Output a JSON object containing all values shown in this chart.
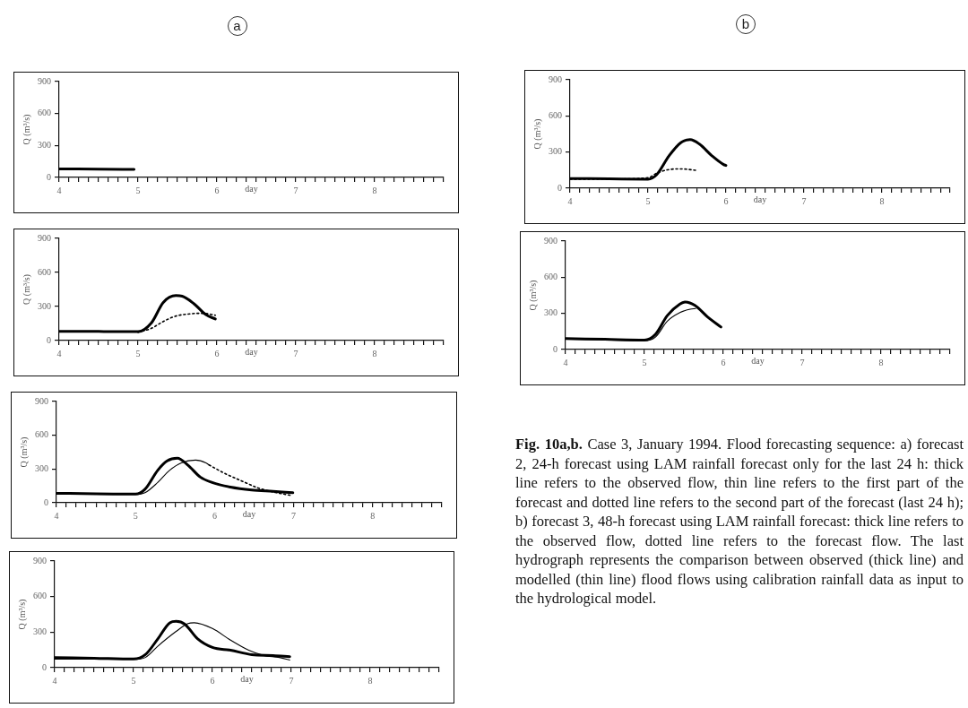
{
  "chart_data": [
    {
      "type": "line",
      "title": "a",
      "xlabel": "day",
      "ylabel": "Q (m³/s)",
      "xlim": [
        4,
        8.875
      ],
      "ylim": [
        0,
        900
      ],
      "yticks": [
        0,
        300,
        600,
        900
      ],
      "grid": false,
      "legend": false,
      "marker": "none",
      "xticks": [
        4,
        {
          "value": 4.125,
          "label": null
        },
        {
          "value": 4.25,
          "label": null
        },
        {
          "value": 4.375,
          "label": null
        },
        {
          "value": 4.5,
          "label": null
        },
        {
          "value": 4.625,
          "label": null
        },
        {
          "value": 4.75,
          "label": null
        },
        {
          "value": 4.875,
          "label": null
        },
        5,
        {
          "value": 5.125,
          "label": null
        },
        {
          "value": 5.25,
          "label": null
        },
        {
          "value": 5.375,
          "label": null
        },
        {
          "value": 5.5,
          "label": null
        },
        {
          "value": 5.625,
          "label": null
        },
        {
          "value": 5.75,
          "label": null
        },
        {
          "value": 5.875,
          "label": null
        },
        6,
        {
          "value": 6.125,
          "label": null
        },
        {
          "value": 6.25,
          "label": null
        },
        {
          "value": 6.375,
          "label": null
        },
        {
          "value": 6.5,
          "label": null
        },
        {
          "value": 6.625,
          "label": null
        },
        {
          "value": 6.75,
          "label": null
        },
        {
          "value": 6.875,
          "label": null
        },
        7,
        {
          "value": 7.125,
          "label": null
        },
        {
          "value": 7.25,
          "label": null
        },
        {
          "value": 7.375,
          "label": null
        },
        {
          "value": 7.5,
          "label": null
        },
        {
          "value": 7.625,
          "label": null
        },
        {
          "value": 7.75,
          "label": null
        },
        {
          "value": 7.875,
          "label": null
        },
        8,
        {
          "value": 8.125,
          "label": null
        },
        {
          "value": 8.25,
          "label": null
        },
        {
          "value": 8.375,
          "label": null
        },
        {
          "value": 8.5,
          "label": null
        },
        {
          "value": 8.625,
          "label": null
        },
        {
          "value": 8.75,
          "label": null
        },
        {
          "value": 8.875,
          "label": null
        }
      ],
      "series": [
        {
          "color": "#000000",
          "line_style": "solid",
          "x": [
            4,
            4.5,
            4.95
          ],
          "values": [
            80,
            78,
            75
          ]
        }
      ]
    },
    {
      "type": "line",
      "xlabel": "day",
      "ylabel": "Q (m³/s)",
      "xlim": [
        4,
        8.875
      ],
      "ylim": [
        0,
        900
      ],
      "yticks": [
        0,
        300,
        600,
        900
      ],
      "grid": false,
      "legend": false,
      "marker": "none",
      "xticks": [
        4,
        {
          "value": 4.125,
          "label": null
        },
        {
          "value": 4.25,
          "label": null
        },
        {
          "value": 4.375,
          "label": null
        },
        {
          "value": 4.5,
          "label": null
        },
        {
          "value": 4.625,
          "label": null
        },
        {
          "value": 4.75,
          "label": null
        },
        {
          "value": 4.875,
          "label": null
        },
        5,
        {
          "value": 5.125,
          "label": null
        },
        {
          "value": 5.25,
          "label": null
        },
        {
          "value": 5.375,
          "label": null
        },
        {
          "value": 5.5,
          "label": null
        },
        {
          "value": 5.625,
          "label": null
        },
        {
          "value": 5.75,
          "label": null
        },
        {
          "value": 5.875,
          "label": null
        },
        6,
        {
          "value": 6.125,
          "label": null
        },
        {
          "value": 6.25,
          "label": null
        },
        {
          "value": 6.375,
          "label": null
        },
        {
          "value": 6.5,
          "label": null
        },
        {
          "value": 6.625,
          "label": null
        },
        {
          "value": 6.75,
          "label": null
        },
        {
          "value": 6.875,
          "label": null
        },
        7,
        {
          "value": 7.125,
          "label": null
        },
        {
          "value": 7.25,
          "label": null
        },
        {
          "value": 7.375,
          "label": null
        },
        {
          "value": 7.5,
          "label": null
        },
        {
          "value": 7.625,
          "label": null
        },
        {
          "value": 7.75,
          "label": null
        },
        {
          "value": 7.875,
          "label": null
        },
        8,
        {
          "value": 8.125,
          "label": null
        },
        {
          "value": 8.25,
          "label": null
        },
        {
          "value": 8.375,
          "label": null
        },
        {
          "value": 8.5,
          "label": null
        },
        {
          "value": 8.625,
          "label": null
        },
        {
          "value": 8.75,
          "label": null
        },
        {
          "value": 8.875,
          "label": null
        }
      ],
      "series": [
        {
          "color": "#000000",
          "line_style": "solid",
          "x": [
            4,
            4.5,
            5,
            5.17,
            5.32,
            5.48,
            5.56,
            5.71,
            5.86,
            5.98
          ],
          "values": [
            80,
            80,
            78,
            156,
            336,
            396,
            391,
            324,
            228,
            190
          ]
        },
        {
          "color": "#000000",
          "line_style": "dotted",
          "x": [
            5,
            5.17,
            5.32,
            5.48,
            5.63,
            5.79,
            5.86,
            5.98
          ],
          "values": [
            72,
            108,
            168,
            216,
            233,
            240,
            238,
            223
          ]
        }
      ]
    },
    {
      "type": "line",
      "xlabel": "day",
      "ylabel": "Q (m³/s)",
      "xlim": [
        4,
        8.875
      ],
      "ylim": [
        0,
        900
      ],
      "yticks": [
        0,
        300,
        600,
        900
      ],
      "grid": false,
      "legend": false,
      "marker": "none",
      "xticks": [
        4,
        {
          "value": 4.125,
          "label": null
        },
        {
          "value": 4.25,
          "label": null
        },
        {
          "value": 4.375,
          "label": null
        },
        {
          "value": 4.5,
          "label": null
        },
        {
          "value": 4.625,
          "label": null
        },
        {
          "value": 4.75,
          "label": null
        },
        {
          "value": 4.875,
          "label": null
        },
        5,
        {
          "value": 5.125,
          "label": null
        },
        {
          "value": 5.25,
          "label": null
        },
        {
          "value": 5.375,
          "label": null
        },
        {
          "value": 5.5,
          "label": null
        },
        {
          "value": 5.625,
          "label": null
        },
        {
          "value": 5.75,
          "label": null
        },
        {
          "value": 5.875,
          "label": null
        },
        6,
        {
          "value": 6.125,
          "label": null
        },
        {
          "value": 6.25,
          "label": null
        },
        {
          "value": 6.375,
          "label": null
        },
        {
          "value": 6.5,
          "label": null
        },
        {
          "value": 6.625,
          "label": null
        },
        {
          "value": 6.75,
          "label": null
        },
        {
          "value": 6.875,
          "label": null
        },
        7,
        {
          "value": 7.125,
          "label": null
        },
        {
          "value": 7.25,
          "label": null
        },
        {
          "value": 7.375,
          "label": null
        },
        {
          "value": 7.5,
          "label": null
        },
        {
          "value": 7.625,
          "label": null
        },
        {
          "value": 7.75,
          "label": null
        },
        {
          "value": 7.875,
          "label": null
        },
        8,
        {
          "value": 8.125,
          "label": null
        },
        {
          "value": 8.25,
          "label": null
        },
        {
          "value": 8.375,
          "label": null
        },
        {
          "value": 8.5,
          "label": null
        },
        {
          "value": 8.625,
          "label": null
        },
        {
          "value": 8.75,
          "label": null
        },
        {
          "value": 8.875,
          "label": null
        }
      ],
      "series": [
        {
          "color": "#000000",
          "line_style": "solid",
          "x": [
            4,
            4.5,
            5,
            5.12,
            5.28,
            5.4,
            5.53,
            5.66,
            5.82,
            5.97,
            6.2,
            6.47,
            6.74,
            6.99
          ],
          "values": [
            84,
            80,
            77,
            120,
            288,
            372,
            396,
            336,
            228,
            180,
            139,
            113,
            101,
            89
          ]
        },
        {
          "color": "#000000",
          "line_style": "solid",
          "x": [
            4,
            4.5,
            5,
            5.12,
            5.28,
            5.43,
            5.58,
            5.76,
            5.89,
            5.93
          ],
          "values": [
            80,
            76,
            74,
            89,
            180,
            288,
            355,
            379,
            355,
            336
          ]
        },
        {
          "color": "#000000",
          "line_style": "dotted",
          "x": [
            5.93,
            6.12,
            6.35,
            6.55,
            6.74,
            6.97
          ],
          "values": [
            336,
            264,
            192,
            132,
            96,
            65
          ]
        }
      ]
    },
    {
      "type": "line",
      "xlabel": "day",
      "ylabel": "Q (m³/s)",
      "xlim": [
        4,
        8.875
      ],
      "ylim": [
        0,
        900
      ],
      "yticks": [
        0,
        300,
        600,
        900
      ],
      "grid": false,
      "legend": false,
      "marker": "none",
      "xticks": [
        4,
        {
          "value": 4.125,
          "label": null
        },
        {
          "value": 4.25,
          "label": null
        },
        {
          "value": 4.375,
          "label": null
        },
        {
          "value": 4.5,
          "label": null
        },
        {
          "value": 4.625,
          "label": null
        },
        {
          "value": 4.75,
          "label": null
        },
        {
          "value": 4.875,
          "label": null
        },
        5,
        {
          "value": 5.125,
          "label": null
        },
        {
          "value": 5.25,
          "label": null
        },
        {
          "value": 5.375,
          "label": null
        },
        {
          "value": 5.5,
          "label": null
        },
        {
          "value": 5.625,
          "label": null
        },
        {
          "value": 5.75,
          "label": null
        },
        {
          "value": 5.875,
          "label": null
        },
        6,
        {
          "value": 6.125,
          "label": null
        },
        {
          "value": 6.25,
          "label": null
        },
        {
          "value": 6.375,
          "label": null
        },
        {
          "value": 6.5,
          "label": null
        },
        {
          "value": 6.625,
          "label": null
        },
        {
          "value": 6.75,
          "label": null
        },
        {
          "value": 6.875,
          "label": null
        },
        7,
        {
          "value": 7.125,
          "label": null
        },
        {
          "value": 7.25,
          "label": null
        },
        {
          "value": 7.375,
          "label": null
        },
        {
          "value": 7.5,
          "label": null
        },
        {
          "value": 7.625,
          "label": null
        },
        {
          "value": 7.75,
          "label": null
        },
        {
          "value": 7.875,
          "label": null
        },
        8,
        {
          "value": 8.125,
          "label": null
        },
        {
          "value": 8.25,
          "label": null
        },
        {
          "value": 8.375,
          "label": null
        },
        {
          "value": 8.5,
          "label": null
        },
        {
          "value": 8.625,
          "label": null
        },
        {
          "value": 8.75,
          "label": null
        },
        {
          "value": 8.875,
          "label": null
        }
      ],
      "series": [
        {
          "color": "#000000",
          "line_style": "solid",
          "x": [
            4,
            4.5,
            5,
            5.15,
            5.31,
            5.46,
            5.54,
            5.65,
            5.81,
            6,
            6.23,
            6.5,
            6.77,
            6.98
          ],
          "values": [
            86,
            80,
            73,
            110,
            245,
            379,
            391,
            367,
            245,
            171,
            147,
            110,
            103,
            93
          ]
        },
        {
          "color": "#000000",
          "line_style": "solid",
          "x": [
            4,
            4.5,
            5,
            5.15,
            5.31,
            5.54,
            5.69,
            5.77,
            6,
            6.23,
            6.46,
            6.65,
            6.85,
            6.98
          ],
          "values": [
            73,
            72,
            70,
            86,
            183,
            306,
            372,
            379,
            330,
            232,
            147,
            103,
            86,
            64
          ]
        }
      ]
    },
    {
      "type": "line",
      "title": "b",
      "xlabel": "day",
      "ylabel": "Q (m³/s)",
      "xlim": [
        4,
        8.875
      ],
      "ylim": [
        0,
        900
      ],
      "yticks": [
        0,
        300,
        600,
        900
      ],
      "grid": false,
      "legend": false,
      "marker": "none",
      "xticks": [
        4,
        {
          "value": 4.125,
          "label": null
        },
        {
          "value": 4.25,
          "label": null
        },
        {
          "value": 4.375,
          "label": null
        },
        {
          "value": 4.5,
          "label": null
        },
        {
          "value": 4.625,
          "label": null
        },
        {
          "value": 4.75,
          "label": null
        },
        {
          "value": 4.875,
          "label": null
        },
        5,
        {
          "value": 5.125,
          "label": null
        },
        {
          "value": 5.25,
          "label": null
        },
        {
          "value": 5.375,
          "label": null
        },
        {
          "value": 5.5,
          "label": null
        },
        {
          "value": 5.625,
          "label": null
        },
        {
          "value": 5.75,
          "label": null
        },
        {
          "value": 5.875,
          "label": null
        },
        6,
        {
          "value": 6.125,
          "label": null
        },
        {
          "value": 6.25,
          "label": null
        },
        {
          "value": 6.375,
          "label": null
        },
        {
          "value": 6.5,
          "label": null
        },
        {
          "value": 6.625,
          "label": null
        },
        {
          "value": 6.75,
          "label": null
        },
        {
          "value": 6.875,
          "label": null
        },
        7,
        {
          "value": 7.125,
          "label": null
        },
        {
          "value": 7.25,
          "label": null
        },
        {
          "value": 7.375,
          "label": null
        },
        {
          "value": 7.5,
          "label": null
        },
        {
          "value": 7.625,
          "label": null
        },
        {
          "value": 7.75,
          "label": null
        },
        {
          "value": 7.875,
          "label": null
        },
        8,
        {
          "value": 8.125,
          "label": null
        },
        {
          "value": 8.25,
          "label": null
        },
        {
          "value": 8.375,
          "label": null
        },
        {
          "value": 8.5,
          "label": null
        },
        {
          "value": 8.625,
          "label": null
        },
        {
          "value": 8.75,
          "label": null
        },
        {
          "value": 8.875,
          "label": null
        }
      ],
      "series": [
        {
          "color": "#000000",
          "line_style": "solid",
          "x": [
            4,
            4.5,
            5,
            5.11,
            5.27,
            5.42,
            5.54,
            5.66,
            5.82,
            5.97,
            6
          ],
          "values": [
            80,
            78,
            75,
            112,
            269,
            378,
            403,
            366,
            269,
            196,
            189
          ]
        },
        {
          "color": "#000000",
          "line_style": "dotted",
          "x": [
            4,
            4.5,
            5,
            5.11,
            5.27,
            5.42,
            5.63
          ],
          "values": [
            75,
            76,
            87,
            124,
            155,
            160,
            148
          ]
        }
      ]
    },
    {
      "type": "line",
      "xlabel": "day",
      "ylabel": "Q (m³/s)",
      "xlim": [
        4,
        8.875
      ],
      "ylim": [
        0,
        900
      ],
      "yticks": [
        0,
        300,
        600,
        900
      ],
      "grid": false,
      "legend": false,
      "marker": "none",
      "xticks": [
        4,
        {
          "value": 4.125,
          "label": null
        },
        {
          "value": 4.25,
          "label": null
        },
        {
          "value": 4.375,
          "label": null
        },
        {
          "value": 4.5,
          "label": null
        },
        {
          "value": 4.625,
          "label": null
        },
        {
          "value": 4.75,
          "label": null
        },
        {
          "value": 4.875,
          "label": null
        },
        5,
        {
          "value": 5.125,
          "label": null
        },
        {
          "value": 5.25,
          "label": null
        },
        {
          "value": 5.375,
          "label": null
        },
        {
          "value": 5.5,
          "label": null
        },
        {
          "value": 5.625,
          "label": null
        },
        {
          "value": 5.75,
          "label": null
        },
        {
          "value": 5.875,
          "label": null
        },
        6,
        {
          "value": 6.125,
          "label": null
        },
        {
          "value": 6.25,
          "label": null
        },
        {
          "value": 6.375,
          "label": null
        },
        {
          "value": 6.5,
          "label": null
        },
        {
          "value": 6.625,
          "label": null
        },
        {
          "value": 6.75,
          "label": null
        },
        {
          "value": 6.875,
          "label": null
        },
        7,
        {
          "value": 7.125,
          "label": null
        },
        {
          "value": 7.25,
          "label": null
        },
        {
          "value": 7.375,
          "label": null
        },
        {
          "value": 7.5,
          "label": null
        },
        {
          "value": 7.625,
          "label": null
        },
        {
          "value": 7.75,
          "label": null
        },
        {
          "value": 7.875,
          "label": null
        },
        8,
        {
          "value": 8.125,
          "label": null
        },
        {
          "value": 8.25,
          "label": null
        },
        {
          "value": 8.375,
          "label": null
        },
        {
          "value": 8.5,
          "label": null
        },
        {
          "value": 8.625,
          "label": null
        },
        {
          "value": 8.75,
          "label": null
        },
        {
          "value": 8.875,
          "label": null
        }
      ],
      "series": [
        {
          "color": "#000000",
          "line_style": "solid",
          "x": [
            4,
            4.5,
            5,
            5.14,
            5.29,
            5.45,
            5.52,
            5.64,
            5.8,
            5.97
          ],
          "values": [
            91,
            85,
            79,
            127,
            282,
            378,
            395,
            366,
            271,
            187
          ]
        },
        {
          "color": "#000000",
          "line_style": "solid",
          "x": [
            4,
            4.5,
            5,
            5.14,
            5.29,
            5.45,
            5.58,
            5.65
          ],
          "values": [
            85,
            80,
            72,
            103,
            235,
            306,
            335,
            340
          ]
        }
      ]
    },
    {
      "type": "other",
      "title": "Fig. 10a,b.",
      "annotations": [
        "Case 3, January 1994. Flood forecasting sequence: a) forecast 2, 24-h forecast using LAM rainfall forecast only for the last 24 h: thick line refers to the observed flow, thin line refers to the first part of the forecast and dotted line refers to the second part of the forecast (last 24 h); b) forecast 3, 48-h forecast using LAM rainfall forecast: thick line refers to the observed flow, dotted line refers to the forecast flow. The last hydrograph represents the comparison between observed (thick line) and modelled (thin line) flood flows using calibration rainfall data as input to the hydrological model."
      ]
    }
  ]
}
